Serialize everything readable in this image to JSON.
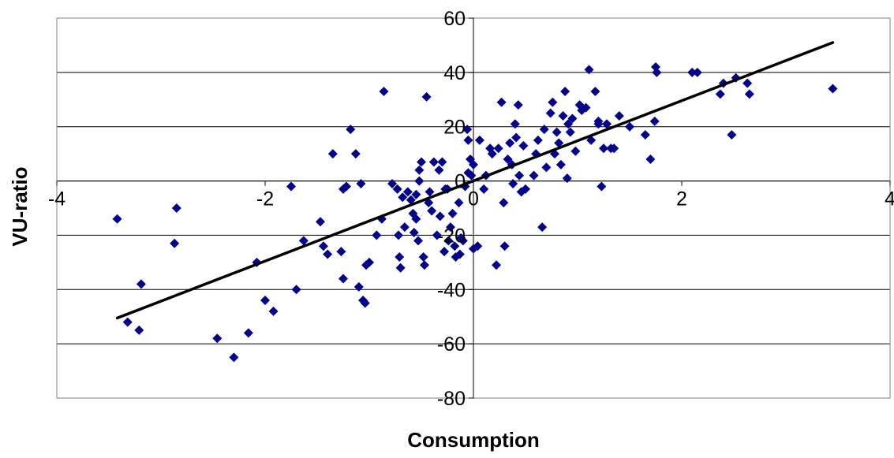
{
  "chart_data": {
    "type": "scatter",
    "title": "",
    "xlabel": "Consumption",
    "ylabel": "VU-ratio",
    "xlim": [
      -4,
      4
    ],
    "ylim": [
      -80,
      60
    ],
    "xticks": [
      -4,
      -2,
      0,
      2,
      4
    ],
    "yticks": [
      -80,
      -60,
      -40,
      -20,
      0,
      20,
      40,
      60
    ],
    "xtick_labels": [
      "-4",
      "-2",
      "0",
      "2",
      "4"
    ],
    "ytick_labels": [
      "-80",
      "-60",
      "-40",
      "-20",
      "0",
      "20",
      "40",
      "60"
    ],
    "grid": "horizontal",
    "legend": "none",
    "marker": "diamond",
    "marker_color": "#00008B",
    "series": [
      {
        "points": [
          [
            -3.42,
            -14
          ],
          [
            -3.32,
            -52
          ],
          [
            -3.21,
            -55
          ],
          [
            -3.19,
            -38
          ],
          [
            -2.85,
            -10
          ],
          [
            -2.87,
            -23
          ],
          [
            -2.46,
            -58
          ],
          [
            -2.3,
            -65
          ],
          [
            -2.16,
            -56
          ],
          [
            -2.08,
            -30
          ],
          [
            -2.0,
            -44
          ],
          [
            -1.92,
            -48
          ],
          [
            -1.75,
            -2
          ],
          [
            -1.7,
            -40
          ],
          [
            -1.63,
            -22
          ],
          [
            -1.47,
            -15
          ],
          [
            -1.44,
            -24
          ],
          [
            -1.4,
            -27
          ],
          [
            -1.35,
            10
          ],
          [
            -1.27,
            -26
          ],
          [
            -1.25,
            -36
          ],
          [
            -1.25,
            -3
          ],
          [
            -1.22,
            -2
          ],
          [
            -1.18,
            19
          ],
          [
            -1.13,
            10
          ],
          [
            -1.1,
            -39
          ],
          [
            -1.08,
            -1
          ],
          [
            -1.06,
            -44
          ],
          [
            -1.04,
            -45
          ],
          [
            -1.03,
            -31
          ],
          [
            -1.0,
            -30
          ],
          [
            -0.93,
            -20
          ],
          [
            -0.88,
            -14
          ],
          [
            -0.86,
            33
          ],
          [
            -0.78,
            -1
          ],
          [
            -0.73,
            -3
          ],
          [
            -0.72,
            -20
          ],
          [
            -0.71,
            -28
          ],
          [
            -0.7,
            -32
          ],
          [
            -0.68,
            -6
          ],
          [
            -0.66,
            -17
          ],
          [
            -0.63,
            -4
          ],
          [
            -0.6,
            -7
          ],
          [
            -0.58,
            -12
          ],
          [
            -0.57,
            -19
          ],
          [
            -0.55,
            -5
          ],
          [
            -0.55,
            -14
          ],
          [
            -0.53,
            -22
          ],
          [
            -0.52,
            4
          ],
          [
            -0.5,
            7
          ],
          [
            -0.52,
            0
          ],
          [
            -0.48,
            -28
          ],
          [
            -0.47,
            -31
          ],
          [
            -0.45,
            31
          ],
          [
            -0.43,
            -8
          ],
          [
            -0.42,
            -4
          ],
          [
            -0.4,
            -11
          ],
          [
            -0.38,
            7
          ],
          [
            -0.35,
            -20
          ],
          [
            -0.33,
            4
          ],
          [
            -0.32,
            -13
          ],
          [
            -0.3,
            7
          ],
          [
            -0.28,
            -26
          ],
          [
            -0.27,
            -3
          ],
          [
            -0.25,
            -3
          ],
          [
            -0.24,
            -22
          ],
          [
            -0.22,
            -17
          ],
          [
            -0.2,
            -12
          ],
          [
            -0.18,
            -24
          ],
          [
            -0.17,
            -28
          ],
          [
            -0.14,
            -8
          ],
          [
            -0.13,
            -27
          ],
          [
            -0.12,
            -21
          ],
          [
            -0.1,
            -22
          ],
          [
            -0.08,
            -2
          ],
          [
            -0.06,
            19
          ],
          [
            -0.05,
            15
          ],
          [
            -0.05,
            3
          ],
          [
            -0.03,
            8
          ],
          [
            -0.02,
            2
          ],
          [
            0.0,
            -25
          ],
          [
            0.0,
            6
          ],
          [
            0.04,
            -24
          ],
          [
            0.06,
            15
          ],
          [
            0.1,
            -3
          ],
          [
            0.12,
            2
          ],
          [
            0.16,
            12
          ],
          [
            0.18,
            10
          ],
          [
            0.22,
            -31
          ],
          [
            0.24,
            12
          ],
          [
            0.27,
            29
          ],
          [
            0.29,
            -8
          ],
          [
            0.3,
            -24
          ],
          [
            0.33,
            8
          ],
          [
            0.35,
            14
          ],
          [
            0.37,
            6
          ],
          [
            0.38,
            -1
          ],
          [
            0.4,
            21
          ],
          [
            0.41,
            16
          ],
          [
            0.43,
            28
          ],
          [
            0.44,
            2
          ],
          [
            0.46,
            -4
          ],
          [
            0.48,
            13
          ],
          [
            0.5,
            -3
          ],
          [
            0.58,
            2
          ],
          [
            0.6,
            10
          ],
          [
            0.62,
            15
          ],
          [
            0.66,
            -17
          ],
          [
            0.68,
            19
          ],
          [
            0.7,
            5
          ],
          [
            0.74,
            25
          ],
          [
            0.76,
            29
          ],
          [
            0.78,
            10
          ],
          [
            0.8,
            18
          ],
          [
            0.82,
            14
          ],
          [
            0.84,
            6
          ],
          [
            0.86,
            24
          ],
          [
            0.88,
            33
          ],
          [
            0.9,
            1
          ],
          [
            0.91,
            21
          ],
          [
            0.93,
            18
          ],
          [
            0.95,
            23
          ],
          [
            0.98,
            11
          ],
          [
            1.02,
            28
          ],
          [
            1.04,
            26
          ],
          [
            1.08,
            27
          ],
          [
            1.11,
            41
          ],
          [
            1.13,
            15
          ],
          [
            1.17,
            33
          ],
          [
            1.2,
            22
          ],
          [
            1.2,
            21
          ],
          [
            1.23,
            -2
          ],
          [
            1.25,
            12
          ],
          [
            1.28,
            21
          ],
          [
            1.32,
            12
          ],
          [
            1.35,
            12
          ],
          [
            1.4,
            24
          ],
          [
            1.5,
            20
          ],
          [
            1.65,
            17
          ],
          [
            1.7,
            8
          ],
          [
            1.74,
            22
          ],
          [
            1.75,
            42
          ],
          [
            1.76,
            40
          ],
          [
            2.1,
            40
          ],
          [
            2.15,
            40
          ],
          [
            2.37,
            32
          ],
          [
            2.4,
            36
          ],
          [
            2.48,
            17
          ],
          [
            2.52,
            38
          ],
          [
            2.63,
            36
          ],
          [
            2.65,
            32
          ],
          [
            3.45,
            34
          ]
        ]
      }
    ],
    "trendline": {
      "type": "linear",
      "x": [
        -3.42,
        3.45
      ],
      "y": [
        -50.5,
        51
      ]
    }
  }
}
